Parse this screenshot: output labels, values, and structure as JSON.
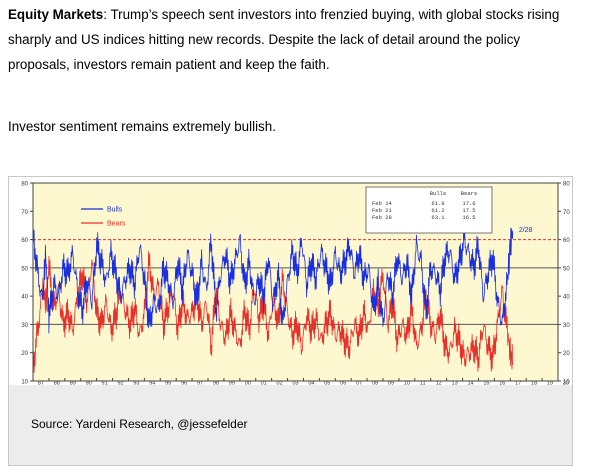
{
  "text": {
    "intro_label": "Equity Markets",
    "intro_rest": ": Trump’s speech sent investors into frenzied buying, with global stocks rising sharply and US indices hitting new records. Despite the lack of detail around the policy proposals, investors remain patient and keep the faith.",
    "sentiment_line": "Investor sentiment remains extremely bullish.",
    "source_line": "Source: Yardeni Research, @jessefelder"
  },
  "chart_data": {
    "type": "line",
    "xlim": [
      1987,
      2020
    ],
    "ylim": [
      10,
      80
    ],
    "yticks": [
      "10",
      "20",
      "30",
      "40",
      "50",
      "60",
      "70",
      "80"
    ],
    "xtick_labels": [
      "87",
      "88",
      "89",
      "90",
      "91",
      "92",
      "93",
      "94",
      "95",
      "96",
      "97",
      "98",
      "99",
      "00",
      "01",
      "02",
      "03",
      "04",
      "05",
      "06",
      "07",
      "08",
      "09",
      "10",
      "11",
      "12",
      "13",
      "14",
      "15",
      "16",
      "17",
      "18",
      "19",
      "20"
    ],
    "grid": false,
    "hlines": [
      {
        "y": 30,
        "color": "#555555",
        "style": "solid"
      },
      {
        "y": 50,
        "color": "#555555",
        "style": "solid"
      },
      {
        "y": 60,
        "color": "#e03030",
        "style": "dashed"
      }
    ],
    "legend": {
      "placement": "top-left"
    },
    "end_label": "2/28",
    "table": {
      "columns": [
        "",
        "Bulls",
        "Bears"
      ],
      "rows": [
        [
          "Feb 14",
          "61.8",
          "17.6"
        ],
        [
          "Feb 21",
          "61.2",
          "17.5"
        ],
        [
          "Feb 28",
          "63.1",
          "16.5"
        ]
      ]
    },
    "colors": {
      "plot_bg": "#fdf8cf",
      "bulls": "#1a2fe0",
      "bears": "#e8302a"
    },
    "series": [
      {
        "name": "Bulls",
        "x": [
          1987.0,
          1987.3,
          1987.6,
          1987.8,
          1988.0,
          1988.3,
          1988.6,
          1988.9,
          1989.2,
          1989.5,
          1989.8,
          1990.1,
          1990.4,
          1990.7,
          1991.0,
          1991.3,
          1991.6,
          1991.9,
          1992.2,
          1992.5,
          1992.8,
          1993.1,
          1993.4,
          1993.7,
          1994.0,
          1994.3,
          1994.6,
          1994.9,
          1995.2,
          1995.5,
          1995.8,
          1996.1,
          1996.4,
          1996.7,
          1997.0,
          1997.3,
          1997.6,
          1997.9,
          1998.2,
          1998.5,
          1998.8,
          1999.1,
          1999.4,
          1999.7,
          2000.0,
          2000.3,
          2000.6,
          2000.9,
          2001.2,
          2001.5,
          2001.8,
          2002.1,
          2002.4,
          2002.7,
          2003.0,
          2003.3,
          2003.6,
          2003.9,
          2004.2,
          2004.5,
          2004.8,
          2005.1,
          2005.4,
          2005.7,
          2006.0,
          2006.3,
          2006.6,
          2006.9,
          2007.2,
          2007.5,
          2007.8,
          2008.1,
          2008.4,
          2008.7,
          2009.0,
          2009.3,
          2009.6,
          2009.9,
          2010.2,
          2010.5,
          2010.8,
          2011.1,
          2011.4,
          2011.7,
          2012.0,
          2012.3,
          2012.6,
          2012.9,
          2013.2,
          2013.5,
          2013.8,
          2014.1,
          2014.4,
          2014.7,
          2015.0,
          2015.3,
          2015.6,
          2015.9,
          2016.2,
          2016.5,
          2016.8,
          2017.0,
          2017.16
        ],
        "values": [
          62,
          48,
          38,
          55,
          32,
          44,
          40,
          50,
          48,
          55,
          42,
          35,
          46,
          38,
          58,
          52,
          45,
          55,
          48,
          40,
          46,
          50,
          44,
          58,
          46,
          30,
          38,
          35,
          50,
          45,
          38,
          52,
          42,
          55,
          48,
          38,
          52,
          42,
          60,
          35,
          48,
          55,
          45,
          52,
          60,
          44,
          52,
          38,
          46,
          40,
          54,
          36,
          48,
          30,
          45,
          56,
          48,
          60,
          44,
          52,
          46,
          56,
          50,
          44,
          55,
          48,
          52,
          58,
          48,
          55,
          46,
          50,
          35,
          44,
          30,
          48,
          40,
          54,
          46,
          52,
          40,
          58,
          52,
          34,
          50,
          48,
          42,
          54,
          56,
          46,
          52,
          60,
          55,
          50,
          58,
          40,
          48,
          54,
          38,
          30,
          45,
          58,
          63.1
        ]
      },
      {
        "name": "Bears",
        "x": [
          1987.0,
          1987.3,
          1987.6,
          1987.8,
          1988.0,
          1988.3,
          1988.6,
          1988.9,
          1989.2,
          1989.5,
          1989.8,
          1990.1,
          1990.4,
          1990.7,
          1991.0,
          1991.3,
          1991.6,
          1991.9,
          1992.2,
          1992.5,
          1992.8,
          1993.1,
          1993.4,
          1993.7,
          1994.0,
          1994.3,
          1994.6,
          1994.9,
          1995.2,
          1995.5,
          1995.8,
          1996.1,
          1996.4,
          1996.7,
          1997.0,
          1997.3,
          1997.6,
          1997.9,
          1998.2,
          1998.5,
          1998.8,
          1999.1,
          1999.4,
          1999.7,
          2000.0,
          2000.3,
          2000.6,
          2000.9,
          2001.2,
          2001.5,
          2001.8,
          2002.1,
          2002.4,
          2002.7,
          2003.0,
          2003.3,
          2003.6,
          2003.9,
          2004.2,
          2004.5,
          2004.8,
          2005.1,
          2005.4,
          2005.7,
          2006.0,
          2006.3,
          2006.6,
          2006.9,
          2007.2,
          2007.5,
          2007.8,
          2008.1,
          2008.4,
          2008.7,
          2009.0,
          2009.3,
          2009.6,
          2009.9,
          2010.2,
          2010.5,
          2010.8,
          2011.1,
          2011.4,
          2011.7,
          2012.0,
          2012.3,
          2012.6,
          2012.9,
          2013.2,
          2013.5,
          2013.8,
          2014.1,
          2014.4,
          2014.7,
          2015.0,
          2015.3,
          2015.6,
          2015.9,
          2016.2,
          2016.5,
          2016.8,
          2017.0,
          2017.16
        ],
        "values": [
          15,
          28,
          42,
          38,
          50,
          36,
          42,
          30,
          34,
          28,
          40,
          48,
          38,
          52,
          34,
          30,
          38,
          28,
          33,
          42,
          35,
          30,
          36,
          26,
          34,
          52,
          40,
          44,
          30,
          36,
          42,
          28,
          38,
          32,
          34,
          40,
          30,
          38,
          22,
          42,
          30,
          25,
          34,
          28,
          22,
          35,
          28,
          44,
          32,
          38,
          26,
          40,
          30,
          46,
          34,
          26,
          30,
          22,
          33,
          28,
          32,
          24,
          30,
          34,
          26,
          28,
          24,
          22,
          30,
          26,
          34,
          28,
          42,
          36,
          48,
          30,
          38,
          24,
          30,
          26,
          36,
          22,
          28,
          40,
          30,
          26,
          34,
          22,
          20,
          28,
          24,
          18,
          20,
          22,
          18,
          30,
          22,
          18,
          30,
          42,
          28,
          20,
          16.5
        ]
      }
    ]
  }
}
